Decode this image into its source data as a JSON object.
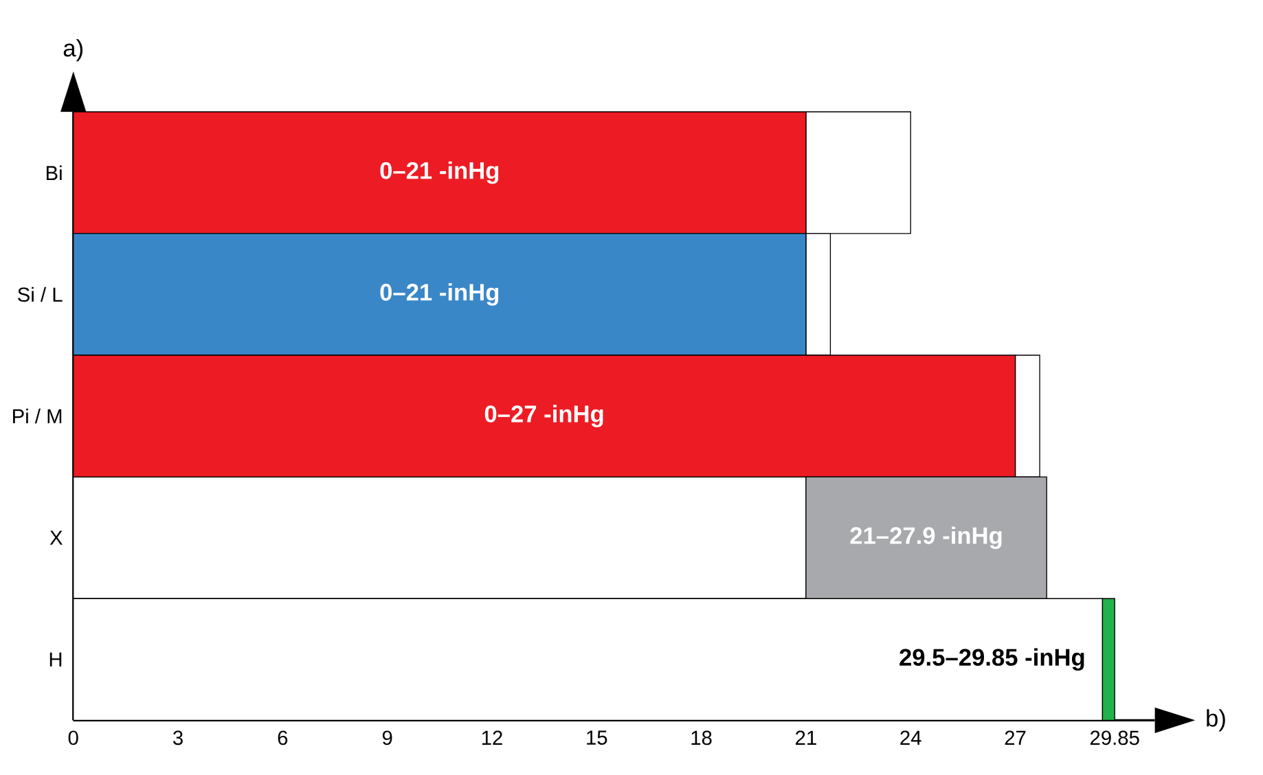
{
  "chart_data": {
    "type": "bar",
    "orientation": "horizontal",
    "xlabel": "b)",
    "ylabel": "a)",
    "categories": [
      "Bi",
      "Si / L",
      "Pi / M",
      "X",
      "H"
    ],
    "xlim": [
      0,
      31
    ],
    "xticks": [
      0,
      3,
      6,
      9,
      12,
      15,
      18,
      21,
      24,
      27,
      29.85
    ],
    "grid": false,
    "series": [
      {
        "colors": [
          "#ffffff",
          "#ffffff",
          "#ffffff",
          "#ffffff",
          "#ffffff"
        ],
        "base": [
          21,
          21,
          27,
          0,
          0
        ],
        "values": [
          3,
          0.7,
          0.7,
          21,
          29.5
        ]
      },
      {
        "colors": [
          "#ed1c24",
          "#3a87c8",
          "#ed1c24",
          "#a7a9ac",
          "#22b24c"
        ],
        "base": [
          0,
          0,
          0,
          21,
          29.5
        ],
        "values": [
          21,
          21,
          27,
          6.9,
          0.35
        ],
        "value_labels": [
          "0–21 -inHg",
          "0–21 -inHg",
          "0–27 -inHg",
          "21–27.9 -inHg",
          "29.5–29.85 -inHg"
        ]
      }
    ]
  }
}
